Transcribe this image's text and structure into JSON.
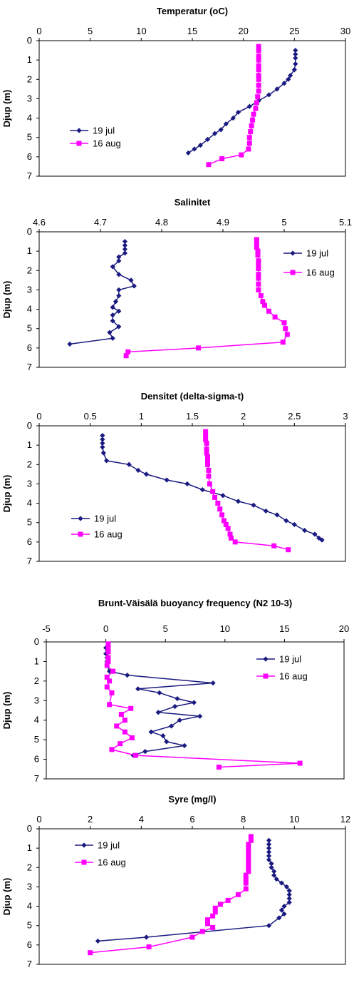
{
  "colors": {
    "jul": "#1a1a80",
    "aug": "#ff00ff"
  },
  "chart_data": [
    {
      "type": "line",
      "title": "Temperatur (oC)",
      "ylabel": "Djup (m)",
      "xlim": [
        0,
        30
      ],
      "ylim": [
        0,
        7
      ],
      "xticks": [
        "0",
        "5",
        "10",
        "15",
        "20",
        "25",
        "30"
      ],
      "yticks": [
        "0",
        "1",
        "2",
        "3",
        "4",
        "5",
        "6",
        "7"
      ],
      "legend": "left",
      "series": [
        {
          "name": "19 jul",
          "marker": "diamond",
          "x": [
            25.1,
            25.1,
            25.1,
            25.1,
            25.0,
            24.6,
            24.4,
            24.0,
            23.3,
            22.5,
            21.5,
            20.6,
            19.5,
            19.0,
            18.3,
            17.8,
            17.2,
            16.5,
            15.8,
            15.2,
            14.6
          ],
          "y": [
            0.5,
            0.7,
            0.9,
            1.2,
            1.5,
            1.8,
            2.0,
            2.2,
            2.5,
            2.8,
            3.1,
            3.4,
            3.7,
            4.0,
            4.3,
            4.6,
            4.8,
            5.1,
            5.4,
            5.6,
            5.8
          ]
        },
        {
          "name": "16 aug",
          "marker": "square",
          "x": [
            21.5,
            21.5,
            21.5,
            21.5,
            21.5,
            21.5,
            21.5,
            21.5,
            21.5,
            21.5,
            21.4,
            21.3,
            21.2,
            21.0,
            20.9,
            20.8,
            20.7,
            20.6,
            20.6,
            20.5,
            19.8,
            17.9,
            16.6
          ],
          "y": [
            0.3,
            0.5,
            0.8,
            1.0,
            1.3,
            1.5,
            1.8,
            2.0,
            2.3,
            2.6,
            2.9,
            3.2,
            3.5,
            3.8,
            4.1,
            4.4,
            4.7,
            5.0,
            5.3,
            5.6,
            5.9,
            6.1,
            6.4
          ]
        }
      ]
    },
    {
      "type": "line",
      "title": "Salinitet",
      "ylabel": "Djup (m)",
      "xlim": [
        4.6,
        5.1
      ],
      "ylim": [
        0,
        7
      ],
      "xticks": [
        "4.6",
        "4.7",
        "4.8",
        "4.9",
        "5",
        "5.1"
      ],
      "yticks": [
        "0",
        "1",
        "2",
        "3",
        "4",
        "5",
        "6",
        "7"
      ],
      "legend": "right",
      "series": [
        {
          "name": "19 jul",
          "marker": "diamond",
          "x": [
            4.74,
            4.74,
            4.74,
            4.74,
            4.73,
            4.73,
            4.72,
            4.73,
            4.75,
            4.755,
            4.73,
            4.73,
            4.725,
            4.72,
            4.73,
            4.72,
            4.72,
            4.73,
            4.715,
            4.72,
            4.65
          ],
          "y": [
            0.5,
            0.7,
            0.9,
            1.1,
            1.3,
            1.5,
            1.8,
            2.2,
            2.5,
            2.8,
            3.0,
            3.3,
            3.6,
            3.9,
            4.1,
            4.3,
            4.6,
            4.9,
            5.2,
            5.5,
            5.8
          ]
        },
        {
          "name": "16 aug",
          "marker": "square",
          "x": [
            4.955,
            4.955,
            4.955,
            4.957,
            4.957,
            4.958,
            4.958,
            4.958,
            4.958,
            4.958,
            4.958,
            4.958,
            4.962,
            4.965,
            4.968,
            4.975,
            4.985,
            5.0,
            5.002,
            5.005,
            4.998,
            4.86,
            4.745,
            4.742
          ],
          "y": [
            0.4,
            0.6,
            0.8,
            1.0,
            1.2,
            1.5,
            1.7,
            1.9,
            2.2,
            2.4,
            2.7,
            3.0,
            3.3,
            3.6,
            3.8,
            4.1,
            4.4,
            4.7,
            5.0,
            5.3,
            5.7,
            6.0,
            6.2,
            6.4
          ]
        }
      ]
    },
    {
      "type": "line",
      "title": "Densitet (delta-sigma-t)",
      "ylabel": "Djup (m)",
      "xlim": [
        0,
        3
      ],
      "ylim": [
        0,
        7
      ],
      "xticks": [
        "0",
        "0.5",
        "1",
        "1.5",
        "2",
        "2.5",
        "3"
      ],
      "yticks": [
        "0",
        "1",
        "2",
        "3",
        "4",
        "5",
        "6",
        "7"
      ],
      "legend": "left",
      "series": [
        {
          "name": "19 jul",
          "marker": "diamond",
          "x": [
            0.62,
            0.62,
            0.62,
            0.62,
            0.63,
            0.66,
            0.88,
            0.97,
            1.05,
            1.25,
            1.45,
            1.6,
            1.8,
            1.95,
            2.1,
            2.22,
            2.33,
            2.42,
            2.5,
            2.6,
            2.7,
            2.74,
            2.77
          ],
          "y": [
            0.5,
            0.7,
            0.9,
            1.1,
            1.4,
            1.8,
            2.0,
            2.3,
            2.5,
            2.8,
            3.0,
            3.3,
            3.6,
            3.9,
            4.1,
            4.4,
            4.6,
            4.9,
            5.1,
            5.4,
            5.6,
            5.8,
            5.9
          ]
        },
        {
          "name": "16 aug",
          "marker": "square",
          "x": [
            1.63,
            1.63,
            1.63,
            1.64,
            1.64,
            1.64,
            1.65,
            1.65,
            1.65,
            1.66,
            1.66,
            1.67,
            1.7,
            1.72,
            1.75,
            1.77,
            1.79,
            1.81,
            1.83,
            1.85,
            1.87,
            1.88,
            1.92,
            2.3,
            2.44
          ],
          "y": [
            0.3,
            0.5,
            0.7,
            0.9,
            1.2,
            1.4,
            1.6,
            1.8,
            2.0,
            2.3,
            2.6,
            3.0,
            3.4,
            3.7,
            4.0,
            4.3,
            4.6,
            4.9,
            5.1,
            5.3,
            5.6,
            5.8,
            6.0,
            6.2,
            6.4
          ]
        }
      ]
    },
    {
      "type": "line",
      "title": "Brunt-Väisälä buoyancy frequency (N2 10-3)",
      "ylabel": "Djup (m)",
      "xlim": [
        -5,
        20
      ],
      "ylim": [
        0,
        7
      ],
      "xticks": [
        "-5",
        "0",
        "5",
        "10",
        "15",
        "20"
      ],
      "yticks": [
        "0",
        "1",
        "2",
        "3",
        "4",
        "5",
        "6",
        "7"
      ],
      "legend": "right",
      "series": [
        {
          "name": "19 jul",
          "marker": "diamond",
          "x": [
            0.0,
            0.0,
            0.1,
            0.1,
            0.1,
            0.3,
            1.8,
            9.0,
            2.7,
            4.5,
            6.0,
            7.4,
            5.8,
            4.4,
            7.9,
            6.2,
            5.5,
            3.8,
            4.8,
            5.1,
            6.6,
            3.3,
            2.3
          ],
          "y": [
            0.3,
            0.6,
            0.8,
            1.0,
            1.2,
            1.5,
            1.7,
            2.1,
            2.4,
            2.6,
            2.9,
            3.1,
            3.3,
            3.6,
            3.8,
            4.0,
            4.3,
            4.6,
            4.8,
            5.1,
            5.3,
            5.6,
            5.8
          ]
        },
        {
          "name": "16 aug",
          "marker": "square",
          "x": [
            0.2,
            0.2,
            0.2,
            0.2,
            0.2,
            0.1,
            0.6,
            0.1,
            0.3,
            0.1,
            0.5,
            0.3,
            2.1,
            1.3,
            1.6,
            0.9,
            1.6,
            2.2,
            1.2,
            0.5,
            2.5,
            16.3,
            9.5
          ],
          "y": [
            0.1,
            0.3,
            0.5,
            0.8,
            1.0,
            1.2,
            1.5,
            1.8,
            2.0,
            2.3,
            2.6,
            3.2,
            3.4,
            3.7,
            4.0,
            4.3,
            4.6,
            4.9,
            5.2,
            5.5,
            5.8,
            6.2,
            6.4
          ]
        }
      ]
    },
    {
      "type": "line",
      "title": "Syre (mg/l)",
      "ylabel": "Djup (m)",
      "xlim": [
        0,
        12
      ],
      "ylim": [
        0,
        7
      ],
      "xticks": [
        "0",
        "2",
        "4",
        "6",
        "8",
        "10",
        "12"
      ],
      "yticks": [
        "0",
        "1",
        "2",
        "3",
        "4",
        "5",
        "6",
        "7"
      ],
      "legend": "top-left",
      "series": [
        {
          "name": "19 jul",
          "marker": "diamond",
          "x": [
            9.0,
            9.0,
            9.0,
            9.0,
            9.0,
            9.0,
            9.1,
            9.1,
            9.2,
            9.2,
            9.3,
            9.5,
            9.7,
            9.8,
            9.8,
            9.8,
            9.8,
            9.6,
            9.5,
            9.6,
            9.4,
            9.0,
            4.2,
            2.3
          ],
          "y": [
            0.6,
            0.8,
            1.0,
            1.2,
            1.4,
            1.6,
            1.8,
            2.0,
            2.2,
            2.4,
            2.6,
            2.8,
            3.0,
            3.2,
            3.4,
            3.6,
            3.8,
            4.0,
            4.2,
            4.4,
            4.6,
            5.0,
            5.6,
            5.8
          ]
        },
        {
          "name": "16 aug",
          "marker": "square",
          "x": [
            8.3,
            8.3,
            8.2,
            8.2,
            8.2,
            8.2,
            8.2,
            8.2,
            8.2,
            8.2,
            8.1,
            8.1,
            8.1,
            8.1,
            7.8,
            7.4,
            7.1,
            6.9,
            6.9,
            6.8,
            6.6,
            6.6,
            6.8,
            6.4,
            6.0,
            4.3,
            2.0
          ],
          "y": [
            0.4,
            0.6,
            0.8,
            1.0,
            1.2,
            1.4,
            1.6,
            1.8,
            2.0,
            2.2,
            2.4,
            2.6,
            2.8,
            3.1,
            3.4,
            3.7,
            3.9,
            4.1,
            4.3,
            4.5,
            4.7,
            4.9,
            5.1,
            5.3,
            5.6,
            6.1,
            6.4
          ]
        }
      ]
    }
  ]
}
